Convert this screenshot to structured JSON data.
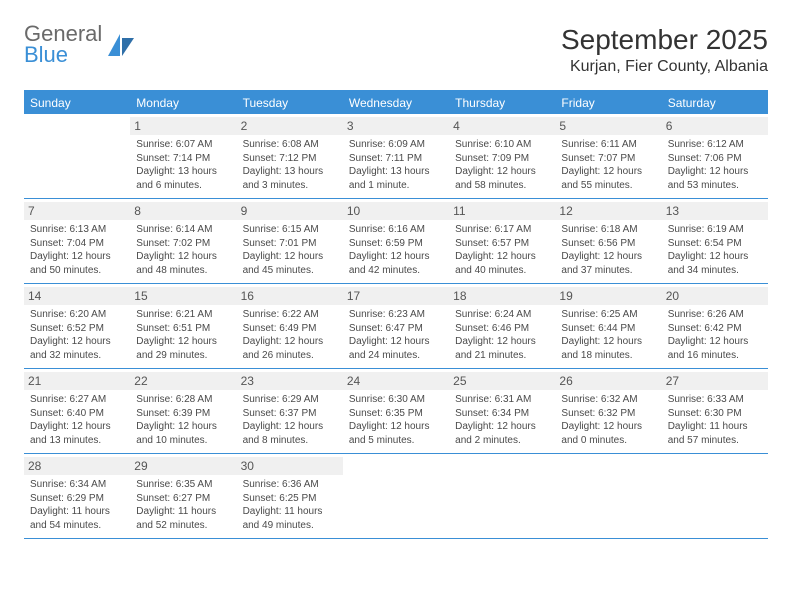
{
  "brand": {
    "name1": "General",
    "name2": "Blue"
  },
  "title": "September 2025",
  "location": "Kurjan, Fier County, Albania",
  "colors": {
    "brand_blue": "#3a8fd6",
    "brand_gray": "#6a6a6a",
    "header_bg": "#3a8fd6",
    "header_text": "#ffffff",
    "daynum_bg": "#f0f0f0",
    "daynum_text": "#555555",
    "body_text": "#4a4a4a",
    "rule": "#3a8fd6"
  },
  "day_names": [
    "Sunday",
    "Monday",
    "Tuesday",
    "Wednesday",
    "Thursday",
    "Friday",
    "Saturday"
  ],
  "weeks": [
    [
      {
        "n": "",
        "sr": "",
        "ss": "",
        "dl": ""
      },
      {
        "n": "1",
        "sr": "Sunrise: 6:07 AM",
        "ss": "Sunset: 7:14 PM",
        "dl": "Daylight: 13 hours and 6 minutes."
      },
      {
        "n": "2",
        "sr": "Sunrise: 6:08 AM",
        "ss": "Sunset: 7:12 PM",
        "dl": "Daylight: 13 hours and 3 minutes."
      },
      {
        "n": "3",
        "sr": "Sunrise: 6:09 AM",
        "ss": "Sunset: 7:11 PM",
        "dl": "Daylight: 13 hours and 1 minute."
      },
      {
        "n": "4",
        "sr": "Sunrise: 6:10 AM",
        "ss": "Sunset: 7:09 PM",
        "dl": "Daylight: 12 hours and 58 minutes."
      },
      {
        "n": "5",
        "sr": "Sunrise: 6:11 AM",
        "ss": "Sunset: 7:07 PM",
        "dl": "Daylight: 12 hours and 55 minutes."
      },
      {
        "n": "6",
        "sr": "Sunrise: 6:12 AM",
        "ss": "Sunset: 7:06 PM",
        "dl": "Daylight: 12 hours and 53 minutes."
      }
    ],
    [
      {
        "n": "7",
        "sr": "Sunrise: 6:13 AM",
        "ss": "Sunset: 7:04 PM",
        "dl": "Daylight: 12 hours and 50 minutes."
      },
      {
        "n": "8",
        "sr": "Sunrise: 6:14 AM",
        "ss": "Sunset: 7:02 PM",
        "dl": "Daylight: 12 hours and 48 minutes."
      },
      {
        "n": "9",
        "sr": "Sunrise: 6:15 AM",
        "ss": "Sunset: 7:01 PM",
        "dl": "Daylight: 12 hours and 45 minutes."
      },
      {
        "n": "10",
        "sr": "Sunrise: 6:16 AM",
        "ss": "Sunset: 6:59 PM",
        "dl": "Daylight: 12 hours and 42 minutes."
      },
      {
        "n": "11",
        "sr": "Sunrise: 6:17 AM",
        "ss": "Sunset: 6:57 PM",
        "dl": "Daylight: 12 hours and 40 minutes."
      },
      {
        "n": "12",
        "sr": "Sunrise: 6:18 AM",
        "ss": "Sunset: 6:56 PM",
        "dl": "Daylight: 12 hours and 37 minutes."
      },
      {
        "n": "13",
        "sr": "Sunrise: 6:19 AM",
        "ss": "Sunset: 6:54 PM",
        "dl": "Daylight: 12 hours and 34 minutes."
      }
    ],
    [
      {
        "n": "14",
        "sr": "Sunrise: 6:20 AM",
        "ss": "Sunset: 6:52 PM",
        "dl": "Daylight: 12 hours and 32 minutes."
      },
      {
        "n": "15",
        "sr": "Sunrise: 6:21 AM",
        "ss": "Sunset: 6:51 PM",
        "dl": "Daylight: 12 hours and 29 minutes."
      },
      {
        "n": "16",
        "sr": "Sunrise: 6:22 AM",
        "ss": "Sunset: 6:49 PM",
        "dl": "Daylight: 12 hours and 26 minutes."
      },
      {
        "n": "17",
        "sr": "Sunrise: 6:23 AM",
        "ss": "Sunset: 6:47 PM",
        "dl": "Daylight: 12 hours and 24 minutes."
      },
      {
        "n": "18",
        "sr": "Sunrise: 6:24 AM",
        "ss": "Sunset: 6:46 PM",
        "dl": "Daylight: 12 hours and 21 minutes."
      },
      {
        "n": "19",
        "sr": "Sunrise: 6:25 AM",
        "ss": "Sunset: 6:44 PM",
        "dl": "Daylight: 12 hours and 18 minutes."
      },
      {
        "n": "20",
        "sr": "Sunrise: 6:26 AM",
        "ss": "Sunset: 6:42 PM",
        "dl": "Daylight: 12 hours and 16 minutes."
      }
    ],
    [
      {
        "n": "21",
        "sr": "Sunrise: 6:27 AM",
        "ss": "Sunset: 6:40 PM",
        "dl": "Daylight: 12 hours and 13 minutes."
      },
      {
        "n": "22",
        "sr": "Sunrise: 6:28 AM",
        "ss": "Sunset: 6:39 PM",
        "dl": "Daylight: 12 hours and 10 minutes."
      },
      {
        "n": "23",
        "sr": "Sunrise: 6:29 AM",
        "ss": "Sunset: 6:37 PM",
        "dl": "Daylight: 12 hours and 8 minutes."
      },
      {
        "n": "24",
        "sr": "Sunrise: 6:30 AM",
        "ss": "Sunset: 6:35 PM",
        "dl": "Daylight: 12 hours and 5 minutes."
      },
      {
        "n": "25",
        "sr": "Sunrise: 6:31 AM",
        "ss": "Sunset: 6:34 PM",
        "dl": "Daylight: 12 hours and 2 minutes."
      },
      {
        "n": "26",
        "sr": "Sunrise: 6:32 AM",
        "ss": "Sunset: 6:32 PM",
        "dl": "Daylight: 12 hours and 0 minutes."
      },
      {
        "n": "27",
        "sr": "Sunrise: 6:33 AM",
        "ss": "Sunset: 6:30 PM",
        "dl": "Daylight: 11 hours and 57 minutes."
      }
    ],
    [
      {
        "n": "28",
        "sr": "Sunrise: 6:34 AM",
        "ss": "Sunset: 6:29 PM",
        "dl": "Daylight: 11 hours and 54 minutes."
      },
      {
        "n": "29",
        "sr": "Sunrise: 6:35 AM",
        "ss": "Sunset: 6:27 PM",
        "dl": "Daylight: 11 hours and 52 minutes."
      },
      {
        "n": "30",
        "sr": "Sunrise: 6:36 AM",
        "ss": "Sunset: 6:25 PM",
        "dl": "Daylight: 11 hours and 49 minutes."
      },
      {
        "n": "",
        "sr": "",
        "ss": "",
        "dl": ""
      },
      {
        "n": "",
        "sr": "",
        "ss": "",
        "dl": ""
      },
      {
        "n": "",
        "sr": "",
        "ss": "",
        "dl": ""
      },
      {
        "n": "",
        "sr": "",
        "ss": "",
        "dl": ""
      }
    ]
  ]
}
